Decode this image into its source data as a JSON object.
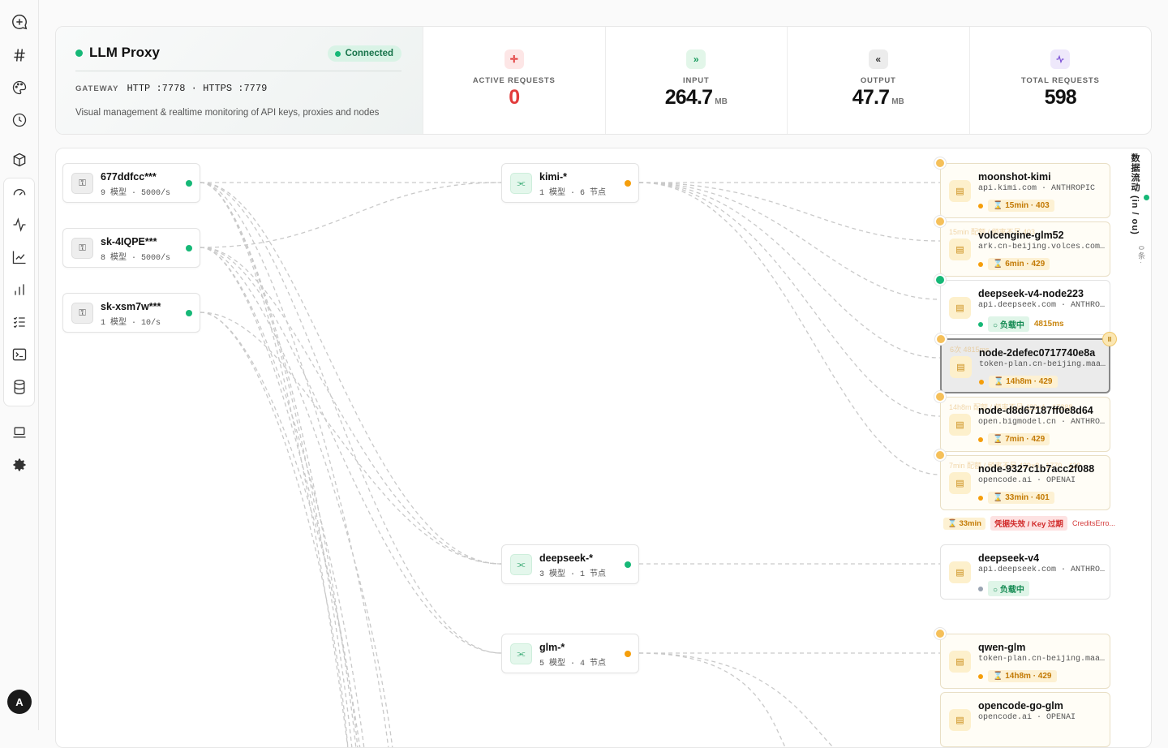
{
  "rail": {
    "items": [
      "new-chat-icon",
      "channels-icon",
      "palette-icon",
      "history-icon",
      "package-icon",
      "gauge-icon",
      "activity-icon",
      "line-chart-icon",
      "bar-chart-icon",
      "checklist-icon",
      "terminal-icon",
      "database-icon",
      "laptop-icon",
      "settings-icon"
    ],
    "avatar": "A"
  },
  "gateway": {
    "title": "LLM Proxy",
    "status": "Connected",
    "label": "GATEWAY",
    "address": "HTTP :7778 · HTTPS :7779",
    "description": "Visual management & realtime monitoring of API keys, proxies and nodes"
  },
  "stats": [
    {
      "label": "ACTIVE REQUESTS",
      "value": "0",
      "unit": "",
      "icon": "crosshair-icon",
      "color": "#e23b3b"
    },
    {
      "label": "INPUT",
      "value": "264.7",
      "unit": "MB",
      "icon": "double-chevron-right-icon",
      "color": "#111111"
    },
    {
      "label": "OUTPUT",
      "value": "47.7",
      "unit": "MB",
      "icon": "double-chevron-left-icon",
      "color": "#111111"
    },
    {
      "label": "TOTAL REQUESTS",
      "value": "598",
      "unit": "",
      "icon": "pulse-icon",
      "color": "#111111"
    }
  ],
  "keys": [
    {
      "name": "677ddfcc***",
      "sub": "9 模型 · 5000/s"
    },
    {
      "name": "sk-4IQPE***",
      "sub": "8 模型 · 5000/s"
    },
    {
      "name": "sk-xsm7w***",
      "sub": "1 模型 · 10/s"
    }
  ],
  "routes": [
    {
      "name": "kimi-*",
      "sub": "1 模型 · 6 节点",
      "status": "warning"
    },
    {
      "name": "deepseek-*",
      "sub": "3 模型 · 1 节点",
      "status": "ok"
    },
    {
      "name": "glm-*",
      "sub": "5 模型 · 4 节点",
      "status": "warning"
    }
  ],
  "providers": [
    {
      "name": "moonshot-kimi",
      "host": "api.kimi.com · ANTHROPIC",
      "badge": "15min · 403",
      "latency": "",
      "ghost": ""
    },
    {
      "name": "volcengine-glm52",
      "host": "ark.cn-beijing.volces.com · OPENAI",
      "badge": "6min · 429",
      "latency": "",
      "ghost": "15min   配额 / 频率不足   403"
    },
    {
      "name": "deepseek-v4-node223",
      "host": "api.deepseek.com · ANTHROPIC",
      "badge": "负载中",
      "latency": "4815ms",
      "ghost": ""
    },
    {
      "name": "node-2defec0717740e8a",
      "host": "token-plan.cn-beijing.maas.aliyuncs.com · OPENAI",
      "badge": "14h8m · 429",
      "latency": "",
      "ghost": "6次   4815ms"
    },
    {
      "name": "node-d8d67187ff0e8d64",
      "host": "open.bigmodel.cn · ANTHROPIC",
      "badge": "7min · 429",
      "latency": "",
      "ghost": "14h8m   配额 / 频率不足   429×1 · 17388"
    },
    {
      "name": "node-9327c1b7acc2f088",
      "host": "opencode.ai · OPENAI",
      "badge": "33min · 401",
      "latency": "",
      "ghost": "7min   配额 / 频率不足   429×8 · 1770 · 429"
    },
    {
      "name": "deepseek-v4",
      "host": "api.deepseek.com · ANTHROPIC",
      "badge": "负载中",
      "latency": "",
      "ghost": ""
    },
    {
      "name": "qwen-glm",
      "host": "token-plan.cn-beijing.maas.aliyuncs.com · OPENAI",
      "badge": "14h8m · 429",
      "latency": "",
      "ghost": ""
    },
    {
      "name": "opencode-go-glm",
      "host": "opencode.ai · OPENAI",
      "badge": "",
      "latency": "",
      "ghost": ""
    }
  ],
  "error_row": {
    "time": "33min",
    "reason": "凭据失效 / Key 过期",
    "detail": "CreditsErro..."
  },
  "flow_panel": {
    "title": "数据流动 (in / ou)",
    "count": "0 条 ·"
  }
}
